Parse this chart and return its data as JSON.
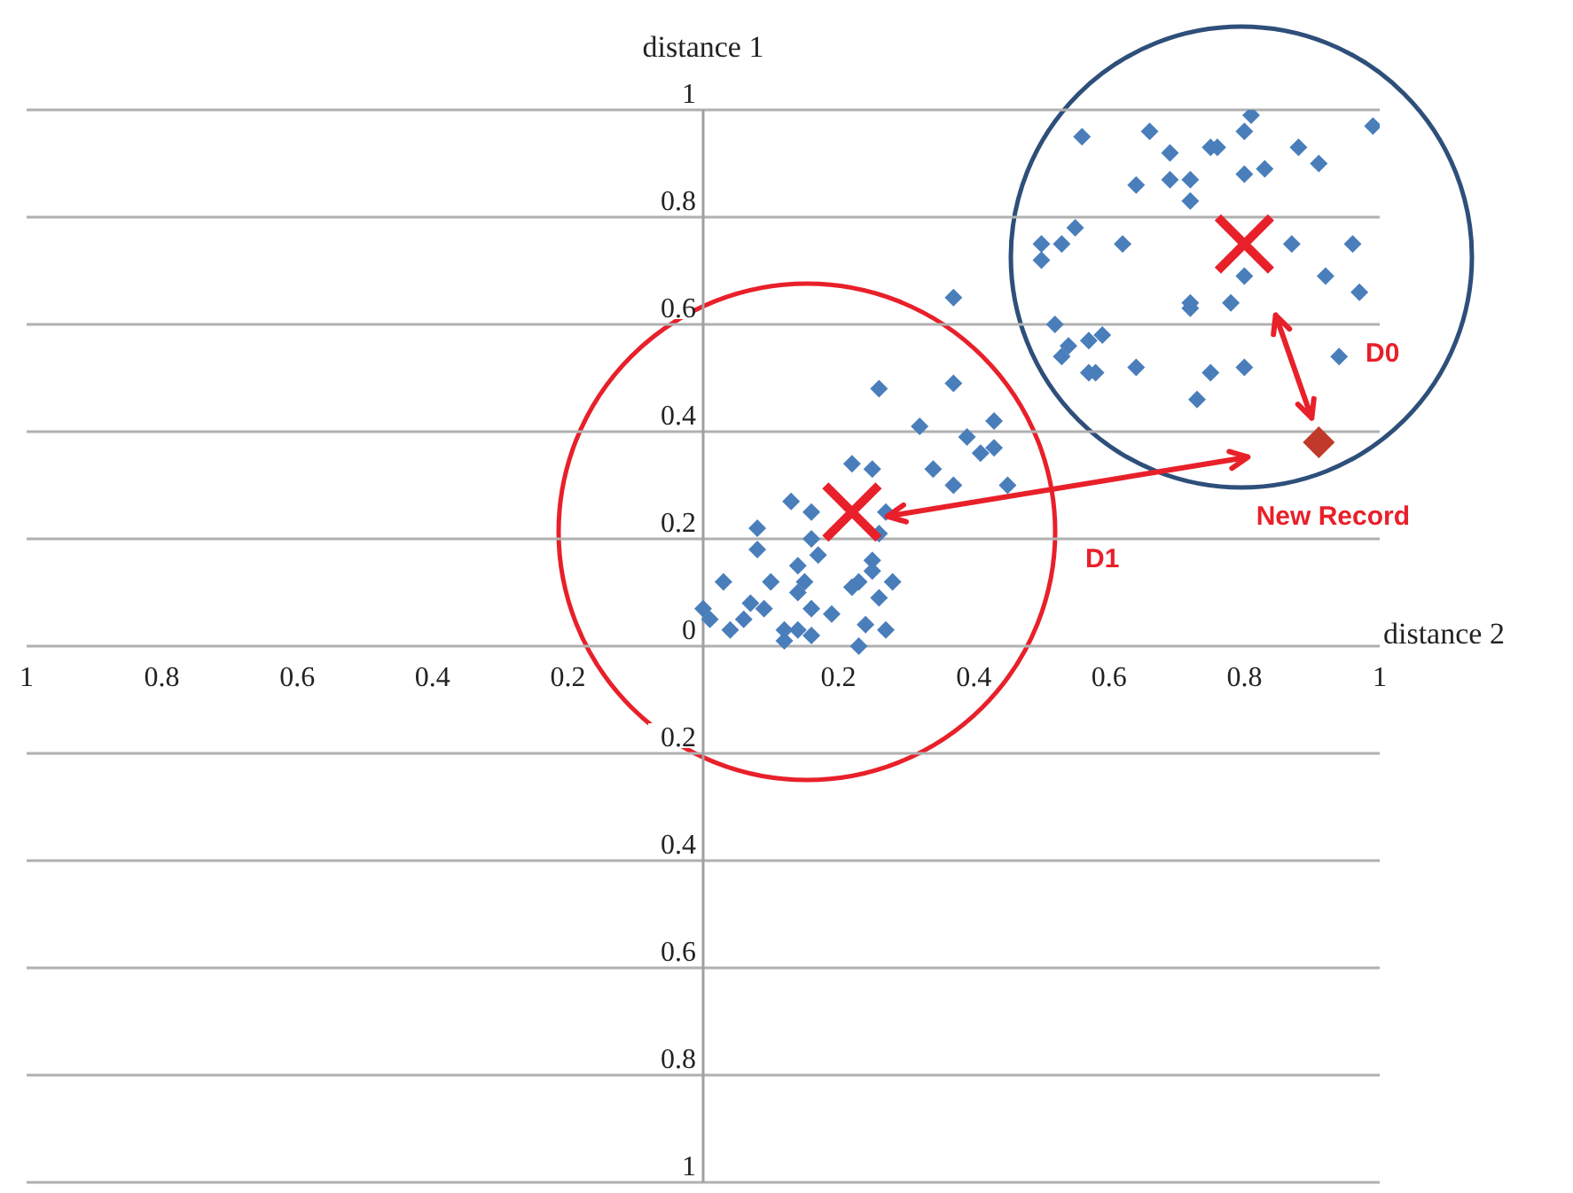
{
  "chart_data": {
    "type": "scatter",
    "xlabel": "distance 2",
    "ylabel": "distance 1",
    "xlim": [
      -1,
      1
    ],
    "ylim": [
      -1,
      1
    ],
    "xticks": [
      {
        "value": -1,
        "label": "1"
      },
      {
        "value": -0.8,
        "label": "0.8"
      },
      {
        "value": -0.6,
        "label": "0.6"
      },
      {
        "value": -0.4,
        "label": "0.4"
      },
      {
        "value": -0.2,
        "label": "0.2"
      },
      0.2,
      0.4,
      0.6,
      0.8,
      1
    ],
    "yticks": [
      {
        "value": -1,
        "label": "1"
      },
      {
        "value": -0.8,
        "label": "0.8"
      },
      {
        "value": -0.6,
        "label": "0.6"
      },
      {
        "value": -0.4,
        "label": "0.4"
      },
      {
        "value": -0.2,
        "label": "0.2"
      },
      0,
      0.2,
      0.4,
      0.6,
      0.8,
      1
    ],
    "grid": "y",
    "series": [
      {
        "color": "#4a7ebb",
        "marker": "diamond",
        "x": [
          0.37,
          0.26,
          0.37,
          0.32,
          0.43,
          0.39,
          0.41,
          0.43,
          0.22,
          0.25,
          0.34,
          0.37,
          0.45,
          0.13,
          0.16,
          0.27,
          0.08,
          0.16,
          0.26,
          0.08,
          0.17,
          0.25,
          0.14,
          0.03,
          0.1,
          0.15,
          0.23,
          0.25,
          0.28,
          0.22,
          0.14,
          0.26,
          0.07,
          0.09,
          0.0,
          0.01,
          0.06,
          0.16,
          0.19,
          0.04,
          0.12,
          0.14,
          0.16,
          0.24,
          0.27,
          0.23,
          0.12,
          0.56,
          0.66,
          0.81,
          0.8,
          0.99,
          0.88,
          0.69,
          0.75,
          0.76,
          0.91,
          0.8,
          0.83,
          0.64,
          0.69,
          0.72,
          0.72,
          0.55,
          0.5,
          0.53,
          0.5,
          0.62,
          0.87,
          0.96,
          0.8,
          0.92,
          0.97,
          0.78,
          0.72,
          0.72,
          0.52,
          0.59,
          0.57,
          0.54,
          0.53,
          0.57,
          0.58,
          0.64,
          0.8,
          0.94,
          0.75,
          0.73
        ],
        "values": [
          0.65,
          0.48,
          0.49,
          0.41,
          0.42,
          0.39,
          0.36,
          0.37,
          0.34,
          0.33,
          0.33,
          0.3,
          0.3,
          0.27,
          0.25,
          0.25,
          0.22,
          0.2,
          0.21,
          0.18,
          0.17,
          0.16,
          0.15,
          0.12,
          0.12,
          0.12,
          0.12,
          0.14,
          0.12,
          0.11,
          0.1,
          0.09,
          0.08,
          0.07,
          0.07,
          0.05,
          0.05,
          0.07,
          0.06,
          0.03,
          0.03,
          0.03,
          0.02,
          0.04,
          0.03,
          0.0,
          0.01,
          0.95,
          0.96,
          0.99,
          0.96,
          0.97,
          0.93,
          0.92,
          0.93,
          0.93,
          0.9,
          0.88,
          0.89,
          0.86,
          0.87,
          0.87,
          0.83,
          0.78,
          0.75,
          0.75,
          0.72,
          0.75,
          0.75,
          0.75,
          0.69,
          0.69,
          0.66,
          0.64,
          0.64,
          0.63,
          0.6,
          0.58,
          0.57,
          0.56,
          0.54,
          0.51,
          0.51,
          0.52,
          0.52,
          0.54,
          0.51,
          0.46
        ]
      },
      {
        "color": "#e8202a",
        "marker": "cross",
        "x": [
          0.22,
          0.8
        ],
        "values": [
          0.25,
          0.75
        ]
      },
      {
        "color": "#c0392b",
        "marker": "diamond",
        "x": [
          0.91
        ],
        "values": [
          0.38
        ]
      }
    ],
    "annotations": [
      "D0",
      "D1",
      {
        "text": "New Record",
        "x": 0.91,
        "y": 0.38
      }
    ]
  }
}
